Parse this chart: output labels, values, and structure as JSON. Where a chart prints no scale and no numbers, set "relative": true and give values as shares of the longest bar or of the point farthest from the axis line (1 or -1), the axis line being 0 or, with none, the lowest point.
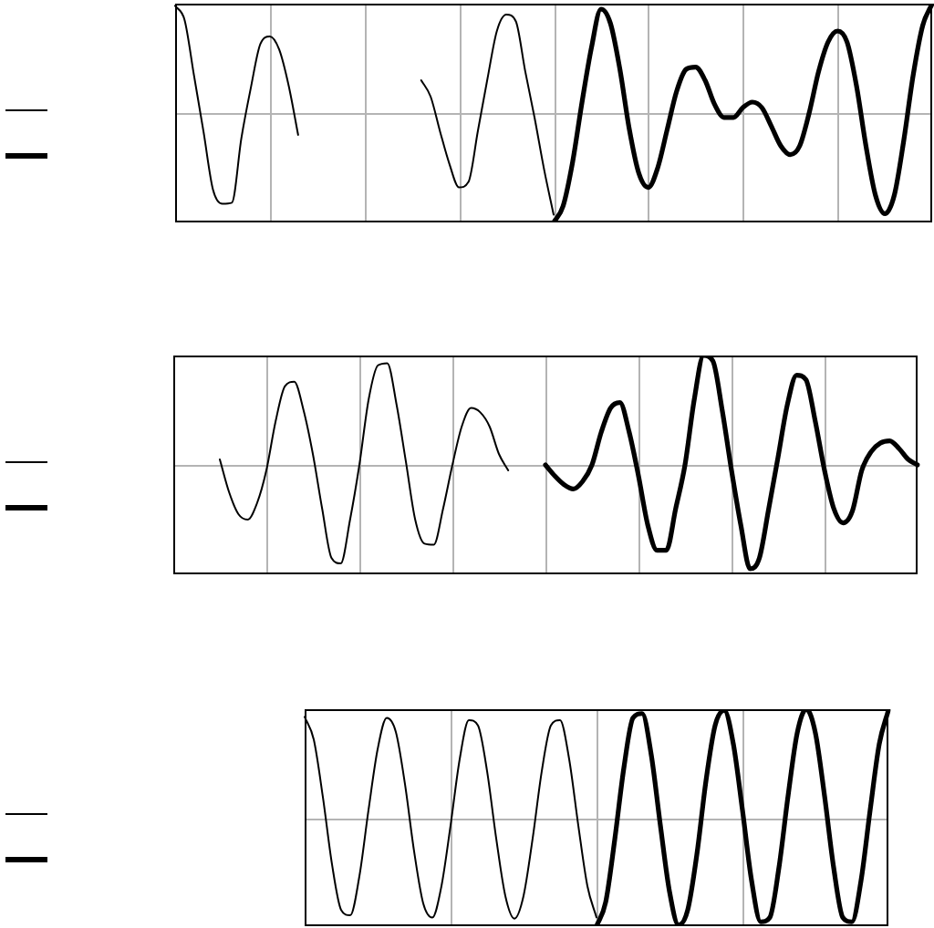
{
  "chart_data": [
    {
      "type": "line",
      "relative": true,
      "grid": true,
      "categories": [
        null,
        null,
        null,
        null,
        null,
        null,
        null,
        null,
        null,
        null,
        null,
        null,
        null,
        null,
        null,
        null,
        null,
        null,
        null,
        null,
        null,
        null,
        null,
        null,
        null,
        null,
        null,
        null,
        null,
        null,
        null,
        null,
        null,
        null,
        null,
        null,
        null,
        null,
        null,
        null,
        null,
        null,
        null,
        null,
        null,
        null,
        null,
        null,
        null,
        null,
        null,
        null,
        null,
        null,
        null,
        null,
        null,
        null,
        null,
        null,
        null,
        null,
        null,
        null,
        null,
        null,
        null,
        null,
        null,
        null,
        null,
        null,
        null,
        null,
        null,
        null,
        null,
        null,
        null,
        null,
        null
      ],
      "series": [
        {
          "color": "#000000",
          "values": [
            0.98,
            0.85,
            0.34,
            -0.17,
            -0.7,
            -0.83,
            -0.82,
            -0.23,
            0.23,
            0.63,
            0.7,
            0.58,
            0.25,
            -0.2,
            null,
            null,
            null,
            null,
            null,
            null,
            null,
            null,
            null,
            null,
            null,
            null,
            0.3,
            0.15,
            -0.17,
            -0.47,
            -0.68,
            -0.63,
            -0.16,
            0.31,
            0.75,
            0.9,
            0.84,
            0.38,
            -0.05,
            -0.52,
            -0.93,
            null,
            null,
            null,
            null,
            null,
            null,
            null,
            null,
            null,
            null,
            null,
            null,
            null,
            null,
            null,
            null,
            null,
            null,
            null,
            null,
            null,
            null,
            null,
            null,
            null,
            null,
            null,
            null,
            null,
            null,
            null,
            null,
            null,
            null,
            null,
            null,
            null,
            null,
            null,
            null
          ]
        },
        {
          "color": "#000000",
          "values": [
            null,
            null,
            null,
            null,
            null,
            null,
            null,
            null,
            null,
            null,
            null,
            null,
            null,
            null,
            null,
            null,
            null,
            null,
            null,
            null,
            null,
            null,
            null,
            null,
            null,
            null,
            null,
            null,
            null,
            null,
            null,
            null,
            null,
            null,
            null,
            null,
            null,
            null,
            null,
            null,
            -1.0,
            -0.85,
            -0.45,
            0.1,
            0.6,
            0.95,
            0.82,
            0.4,
            -0.15,
            -0.55,
            -0.68,
            -0.5,
            -0.15,
            0.2,
            0.4,
            0.42,
            0.3,
            0.08,
            -0.04,
            -0.04,
            0.05,
            0.1,
            0.05,
            -0.12,
            -0.3,
            -0.38,
            -0.3,
            0.0,
            0.38,
            0.65,
            0.75,
            0.65,
            0.25,
            -0.3,
            -0.75,
            -0.92,
            -0.75,
            -0.25,
            0.35,
            0.8,
            1.0
          ]
        }
      ]
    },
    {
      "type": "line",
      "relative": true,
      "grid": true,
      "categories": [
        null,
        null,
        null,
        null,
        null,
        null,
        null,
        null,
        null,
        null,
        null,
        null,
        null,
        null,
        null,
        null,
        null,
        null,
        null,
        null,
        null,
        null,
        null,
        null,
        null,
        null,
        null,
        null,
        null,
        null,
        null,
        null,
        null,
        null,
        null,
        null,
        null,
        null,
        null,
        null,
        null,
        null,
        null,
        null,
        null,
        null,
        null,
        null,
        null,
        null,
        null,
        null,
        null,
        null,
        null,
        null,
        null,
        null,
        null,
        null,
        null,
        null,
        null,
        null,
        null,
        null,
        null,
        null,
        null,
        null,
        null,
        null,
        null,
        null,
        null,
        null,
        null,
        null,
        null,
        null,
        null
      ],
      "series": [
        {
          "color": "#000000",
          "values": [
            null,
            null,
            null,
            null,
            null,
            0.05,
            -0.25,
            -0.45,
            -0.5,
            -0.35,
            -0.05,
            0.4,
            0.72,
            0.76,
            0.5,
            0.1,
            -0.4,
            -0.85,
            -0.9,
            -0.5,
            0.0,
            0.6,
            0.91,
            0.93,
            0.55,
            0.03,
            -0.5,
            -0.72,
            -0.73,
            -0.4,
            0.0,
            0.35,
            0.52,
            0.48,
            0.35,
            0.1,
            -0.05,
            null,
            null,
            null,
            null,
            null,
            null,
            null,
            null,
            null,
            null,
            null,
            null,
            null,
            null,
            null,
            null,
            null,
            null,
            null,
            null,
            null,
            null,
            null,
            null,
            null,
            null,
            null,
            null,
            null,
            null,
            null,
            null,
            null,
            null,
            null,
            null,
            null,
            null,
            null,
            null,
            null,
            null,
            null,
            null
          ]
        },
        {
          "color": "#000000",
          "values": [
            null,
            null,
            null,
            null,
            null,
            null,
            null,
            null,
            null,
            null,
            null,
            null,
            null,
            null,
            null,
            null,
            null,
            null,
            null,
            null,
            null,
            null,
            null,
            null,
            null,
            null,
            null,
            null,
            null,
            null,
            null,
            null,
            null,
            null,
            null,
            null,
            null,
            null,
            null,
            null,
            0.0,
            -0.1,
            -0.18,
            -0.22,
            -0.15,
            0.0,
            0.3,
            0.52,
            0.57,
            0.3,
            -0.1,
            -0.55,
            -0.78,
            -0.78,
            -0.4,
            0.0,
            0.6,
            1.0,
            0.95,
            0.5,
            -0.05,
            -0.55,
            -0.95,
            -0.85,
            -0.4,
            0.07,
            0.55,
            0.82,
            0.78,
            0.4,
            -0.05,
            -0.4,
            -0.53,
            -0.42,
            -0.05,
            0.12,
            0.2,
            0.22,
            0.15,
            0.05,
            0.0
          ]
        }
      ]
    },
    {
      "type": "line",
      "relative": true,
      "grid": true,
      "categories": [
        null,
        null,
        null,
        null,
        null,
        null,
        null,
        null,
        null,
        null,
        null,
        null,
        null,
        null,
        null,
        null,
        null,
        null,
        null,
        null,
        null,
        null,
        null,
        null,
        null,
        null,
        null,
        null,
        null,
        null,
        null,
        null,
        null,
        null,
        null,
        null,
        null,
        null,
        null,
        null,
        null,
        null,
        null,
        null,
        null,
        null,
        null,
        null,
        null,
        null,
        null,
        null,
        null,
        null,
        null,
        null,
        null,
        null,
        null,
        null,
        null,
        null,
        null,
        null,
        null
      ],
      "series": [
        {
          "color": "#000000",
          "values": [
            0.93,
            0.72,
            0.19,
            -0.43,
            -0.85,
            -0.9,
            -0.54,
            0.07,
            0.63,
            0.92,
            0.79,
            0.31,
            -0.31,
            -0.79,
            -0.92,
            -0.63,
            -0.07,
            0.54,
            0.9,
            0.85,
            0.43,
            -0.19,
            -0.72,
            -0.93,
            -0.72,
            -0.19,
            0.43,
            0.85,
            0.9,
            0.54,
            -0.07,
            -0.63,
            -0.92,
            null,
            null,
            null,
            null,
            null,
            null,
            null,
            null,
            null,
            null,
            null,
            null,
            null,
            null,
            null,
            null,
            null,
            null,
            null,
            null,
            null,
            null,
            null,
            null,
            null,
            null,
            null,
            null,
            null,
            null,
            null,
            null
          ]
        },
        {
          "color": "#000000",
          "values": [
            null,
            null,
            null,
            null,
            null,
            null,
            null,
            null,
            null,
            null,
            null,
            null,
            null,
            null,
            null,
            null,
            null,
            null,
            null,
            null,
            null,
            null,
            null,
            null,
            null,
            null,
            null,
            null,
            null,
            null,
            null,
            null,
            -1.0,
            -0.78,
            -0.2,
            0.46,
            0.92,
            0.96,
            0.58,
            -0.07,
            -0.68,
            -0.99,
            -0.85,
            -0.34,
            0.34,
            0.85,
            0.99,
            0.68,
            0.07,
            -0.58,
            -0.96,
            -0.92,
            -0.46,
            0.2,
            0.78,
            1.0,
            0.78,
            0.2,
            -0.46,
            -0.92,
            -0.96,
            -0.58,
            0.07,
            0.68,
            0.99
          ]
        }
      ]
    }
  ]
}
